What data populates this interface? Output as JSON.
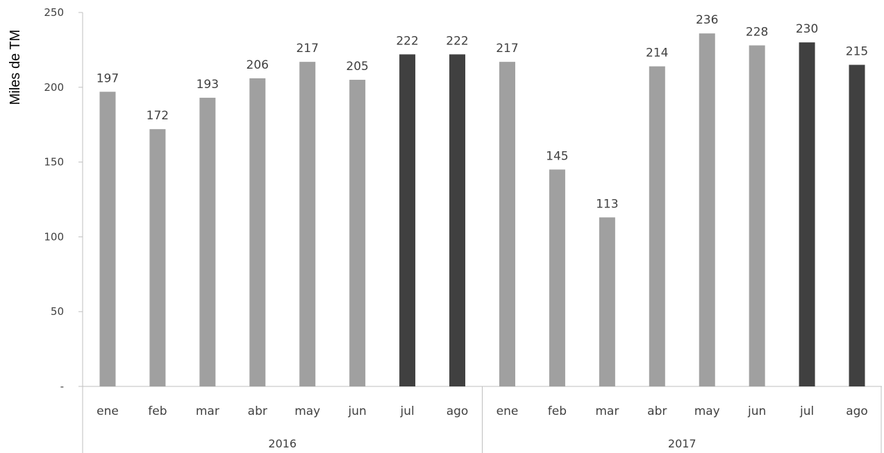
{
  "chart_data": {
    "type": "bar",
    "title": "",
    "ylabel": "Miles de TM",
    "xlabel": "",
    "ylim": [
      0,
      250
    ],
    "yticks": [
      {
        "value": 0,
        "label": "-"
      },
      {
        "value": 50,
        "label": "50"
      },
      {
        "value": 100,
        "label": "100"
      },
      {
        "value": 150,
        "label": "150"
      },
      {
        "value": 200,
        "label": "200"
      },
      {
        "value": 250,
        "label": "250"
      }
    ],
    "grid": false,
    "legend": "none",
    "colors": {
      "default": "#a0a0a0",
      "highlight": "#404040"
    },
    "groups": [
      {
        "label": "2016",
        "bars": [
          {
            "category": "ene",
            "value": 197,
            "label": "197",
            "highlight": false
          },
          {
            "category": "feb",
            "value": 172,
            "label": "172",
            "highlight": false
          },
          {
            "category": "mar",
            "value": 193,
            "label": "193",
            "highlight": false
          },
          {
            "category": "abr",
            "value": 206,
            "label": "206",
            "highlight": false
          },
          {
            "category": "may",
            "value": 217,
            "label": "217",
            "highlight": false
          },
          {
            "category": "jun",
            "value": 205,
            "label": "205",
            "highlight": false
          },
          {
            "category": "jul",
            "value": 222,
            "label": "222",
            "highlight": true
          },
          {
            "category": "ago",
            "value": 222,
            "label": "222",
            "highlight": true
          }
        ]
      },
      {
        "label": "2017",
        "bars": [
          {
            "category": "ene",
            "value": 217,
            "label": "217",
            "highlight": false
          },
          {
            "category": "feb",
            "value": 145,
            "label": "145",
            "highlight": false
          },
          {
            "category": "mar",
            "value": 113,
            "label": "113",
            "highlight": false
          },
          {
            "category": "abr",
            "value": 214,
            "label": "214",
            "highlight": false
          },
          {
            "category": "may",
            "value": 236,
            "label": "236",
            "highlight": false
          },
          {
            "category": "jun",
            "value": 228,
            "label": "228",
            "highlight": false
          },
          {
            "category": "jul",
            "value": 230,
            "label": "230",
            "highlight": true
          },
          {
            "category": "ago",
            "value": 215,
            "label": "215",
            "highlight": true
          }
        ]
      }
    ]
  }
}
